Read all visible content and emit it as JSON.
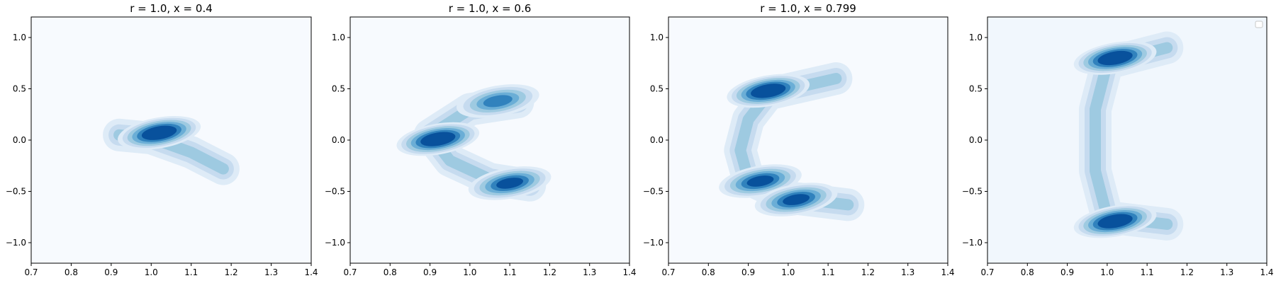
{
  "chart_data": [
    {
      "type": "contour",
      "title": "r = 1.0, x = 0.4",
      "xlabel": "",
      "ylabel": "",
      "xlim": [
        0.7,
        1.4
      ],
      "ylim": [
        -1.2,
        1.2
      ],
      "xticks": [
        "0.7",
        "0.8",
        "0.9",
        "1.0",
        "1.1",
        "1.2",
        "1.3",
        "1.4"
      ],
      "yticks": [
        "1.0",
        "0.5",
        "0.0",
        "−0.5",
        "−1.0"
      ],
      "colormap": "Blues",
      "density_peaks": [
        {
          "x": 1.02,
          "y": 0.07,
          "relative_density": 1.0
        }
      ],
      "crescent_arm": [
        [
          0.92,
          0.05
        ],
        [
          1.0,
          0.02
        ],
        [
          1.1,
          -0.12
        ],
        [
          1.18,
          -0.28
        ]
      ]
    },
    {
      "type": "contour",
      "title": "r = 1.0, x = 0.6",
      "xlabel": "",
      "ylabel": "",
      "xlim": [
        0.7,
        1.4
      ],
      "ylim": [
        -1.2,
        1.2
      ],
      "xticks": [
        "0.7",
        "0.8",
        "0.9",
        "1.0",
        "1.1",
        "1.2",
        "1.3",
        "1.4"
      ],
      "yticks": [
        "1.0",
        "0.5",
        "0.0",
        "−0.5",
        "−1.0"
      ],
      "colormap": "Blues",
      "density_peaks": [
        {
          "x": 0.92,
          "y": 0.01,
          "relative_density": 1.0
        },
        {
          "x": 1.1,
          "y": -0.42,
          "relative_density": 0.85
        },
        {
          "x": 1.07,
          "y": 0.38,
          "relative_density": 0.55
        }
      ],
      "crescent_arm": [
        [
          1.12,
          0.37
        ],
        [
          1.0,
          0.3
        ],
        [
          0.9,
          0.05
        ],
        [
          0.95,
          -0.2
        ],
        [
          1.05,
          -0.38
        ],
        [
          1.15,
          -0.44
        ]
      ]
    },
    {
      "type": "contour",
      "title": "r = 1.0, x = 0.799",
      "xlabel": "",
      "ylabel": "",
      "xlim": [
        0.7,
        1.4
      ],
      "ylim": [
        -1.2,
        1.2
      ],
      "xticks": [
        "0.7",
        "0.8",
        "0.9",
        "1.0",
        "1.1",
        "1.2",
        "1.3",
        "1.4"
      ],
      "yticks": [
        "1.0",
        "0.5",
        "0.0",
        "−0.5",
        "−1.0"
      ],
      "colormap": "Blues",
      "density_peaks": [
        {
          "x": 0.95,
          "y": 0.48,
          "relative_density": 1.0
        },
        {
          "x": 0.93,
          "y": -0.4,
          "relative_density": 0.75
        },
        {
          "x": 1.02,
          "y": -0.58,
          "relative_density": 0.7
        }
      ],
      "crescent_arm": [
        [
          1.12,
          0.6
        ],
        [
          0.95,
          0.45
        ],
        [
          0.9,
          0.2
        ],
        [
          0.88,
          -0.1
        ],
        [
          0.9,
          -0.38
        ],
        [
          1.0,
          -0.56
        ],
        [
          1.15,
          -0.63
        ]
      ]
    },
    {
      "type": "contour",
      "title": "",
      "xlabel": "",
      "ylabel": "",
      "xlim": [
        0.7,
        1.4
      ],
      "ylim": [
        -1.2,
        1.2
      ],
      "xticks": [
        "0.7",
        "0.8",
        "0.9",
        "1.0",
        "1.1",
        "1.2",
        "1.3",
        "1.4"
      ],
      "yticks": [
        "1.0",
        "0.5",
        "0.0",
        "−0.5",
        "−1.0"
      ],
      "colormap": "Blues",
      "legend": "top-right (empty)",
      "density_peaks": [
        {
          "x": 1.02,
          "y": 0.8,
          "relative_density": 1.0
        },
        {
          "x": 1.02,
          "y": -0.79,
          "relative_density": 1.0
        }
      ],
      "crescent_arm": [
        [
          1.15,
          0.9
        ],
        [
          1.0,
          0.75
        ],
        [
          0.97,
          0.3
        ],
        [
          0.97,
          -0.3
        ],
        [
          1.0,
          -0.75
        ],
        [
          1.15,
          -0.82
        ]
      ]
    }
  ],
  "colors": {
    "level_1": "#f0f6fd",
    "level_2": "#deebf7",
    "level_3": "#c6dbef",
    "level_4": "#9ecae1",
    "level_5": "#6baed6",
    "level_6": "#3182bd",
    "level_7": "#08519c"
  }
}
